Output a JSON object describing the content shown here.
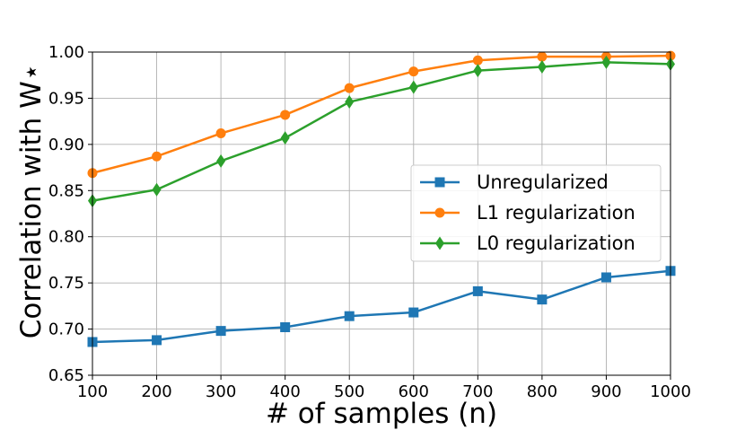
{
  "chart_data": {
    "type": "line",
    "title": "",
    "xlabel": "# of samples (n)",
    "ylabel": "Correlation with W⋆",
    "x": [
      100,
      200,
      300,
      400,
      500,
      600,
      700,
      800,
      900,
      1000
    ],
    "xlim": [
      100,
      1000
    ],
    "ylim": [
      0.65,
      1.0
    ],
    "x_ticks": [
      "100",
      "200",
      "300",
      "400",
      "500",
      "600",
      "700",
      "800",
      "900",
      "1000"
    ],
    "y_ticks": [
      "0.65",
      "0.70",
      "0.75",
      "0.80",
      "0.85",
      "0.90",
      "0.95",
      "1.00"
    ],
    "grid": true,
    "legend_position": "center-right",
    "series": [
      {
        "name": "Unregularized",
        "color": "#1f77b4",
        "marker": "square",
        "values": [
          0.686,
          0.688,
          0.698,
          0.702,
          0.714,
          0.718,
          0.741,
          0.732,
          0.756,
          0.763
        ]
      },
      {
        "name": "L1 regularization",
        "color": "#ff7f0e",
        "marker": "circle",
        "values": [
          0.869,
          0.887,
          0.912,
          0.932,
          0.961,
          0.979,
          0.991,
          0.995,
          0.995,
          0.996
        ]
      },
      {
        "name": "L0 regularization",
        "color": "#2ca02c",
        "marker": "diamond",
        "values": [
          0.839,
          0.851,
          0.882,
          0.907,
          0.946,
          0.962,
          0.98,
          0.984,
          0.989,
          0.987
        ]
      }
    ]
  }
}
